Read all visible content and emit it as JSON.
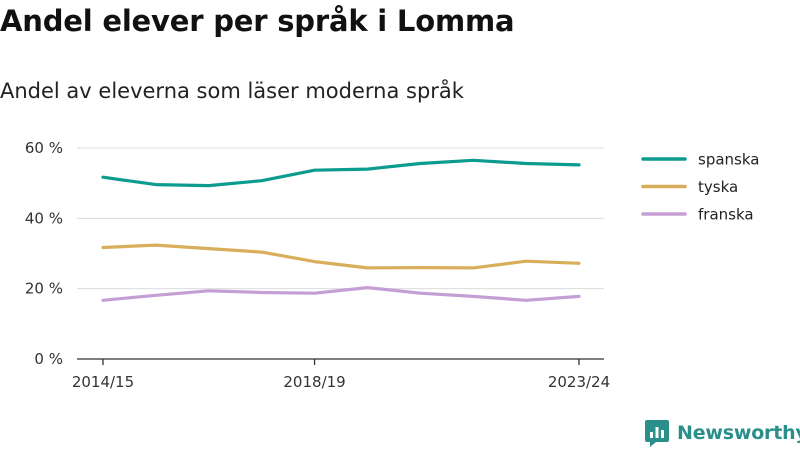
{
  "title": "Andel elever per språk i Lomma",
  "subtitle": "Andel av eleverna som läser moderna språk",
  "brand": {
    "name": "Newsworthy",
    "color": "#2a8f8a"
  },
  "chart_data": {
    "type": "line",
    "x": [
      "2014/15",
      "2015/16",
      "2016/17",
      "2017/18",
      "2018/19",
      "2019/20",
      "2020/21",
      "2021/22",
      "2022/23",
      "2023/24"
    ],
    "x_tick_labels": [
      "2014/15",
      "2018/19",
      "2023/24"
    ],
    "y_ticks": [
      0,
      20,
      40,
      60
    ],
    "y_tick_labels": [
      "0 %",
      "20 %",
      "40 %",
      "60 %"
    ],
    "ylim": [
      0,
      60
    ],
    "grid": true,
    "legend_position": "right",
    "series": [
      {
        "name": "spanska",
        "color": "#0b9b8f",
        "values": [
          51.7,
          49.6,
          49.3,
          50.7,
          53.7,
          54.0,
          55.6,
          56.5,
          55.6,
          55.2
        ]
      },
      {
        "name": "tyska",
        "color": "#d9ae5b",
        "values": [
          31.7,
          32.4,
          31.4,
          30.4,
          27.7,
          25.9,
          26.0,
          25.9,
          27.8,
          27.2
        ]
      },
      {
        "name": "franska",
        "color": "#c59ed4",
        "values": [
          16.7,
          18.1,
          19.4,
          18.9,
          18.7,
          20.3,
          18.7,
          17.8,
          16.7,
          17.8
        ]
      }
    ]
  }
}
